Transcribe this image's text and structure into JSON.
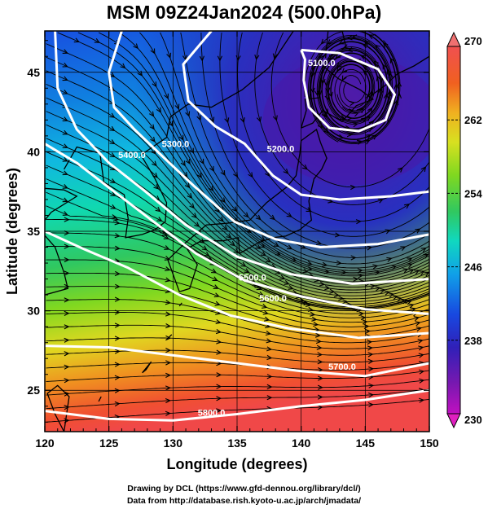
{
  "title": "MSM 09Z24Jan2024 (500.0hPa)",
  "xlabel": "Longitude (degrees)",
  "ylabel": "Latitude  (degrees)",
  "credit": {
    "line1": "Drawing by DCL (https://www.gfd-dennou.org/library/dcl/)",
    "line2": "Data from http://database.rish.kyoto-u.ac.jp/arch/jmadata/"
  },
  "chart_data": {
    "type": "heatmap",
    "xlim": [
      120,
      150
    ],
    "ylim": [
      22.4,
      47.6
    ],
    "xticks": [
      120,
      125,
      130,
      135,
      140,
      145,
      150
    ],
    "yticks": [
      25,
      30,
      35,
      40,
      45
    ],
    "grid": true,
    "colorbar": {
      "min": 230,
      "max": 270,
      "tick_labels": [
        "270",
        "262",
        "254",
        "246",
        "238",
        "230"
      ],
      "colors": [
        "#c010c0",
        "#6a1aa8",
        "#2a20b0",
        "#1850e0",
        "#10a8e8",
        "#10d8b0",
        "#30c860",
        "#80d820",
        "#d0e020",
        "#f0c020",
        "#f08020",
        "#f04030",
        "#f07080"
      ]
    },
    "contours": [
      {
        "label": "5100.0",
        "value": 5100
      },
      {
        "label": "5200.0",
        "value": 5200
      },
      {
        "label": "5300.0",
        "value": 5300
      },
      {
        "label": "5400.0",
        "value": 5400
      },
      {
        "label": "5500.0",
        "value": 5500
      },
      {
        "label": "5600.0",
        "value": 5600
      },
      {
        "label": "5700.0",
        "value": 5700
      },
      {
        "label": "5800.0",
        "value": 5800
      }
    ]
  }
}
